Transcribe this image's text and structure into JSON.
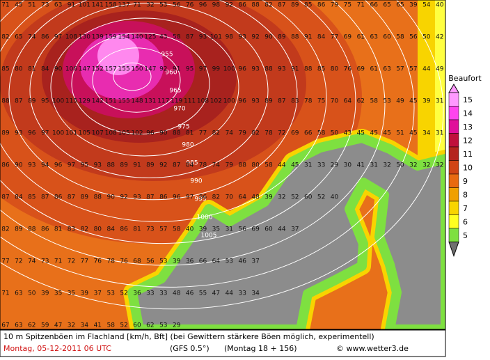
{
  "map": {
    "rows": [
      [
        71,
        45,
        51,
        73,
        63,
        91,
        101,
        141,
        158,
        137,
        71,
        32,
        53,
        56,
        76,
        96,
        98,
        92,
        86,
        88,
        82,
        87,
        89,
        85,
        86,
        79,
        75,
        71,
        66,
        65,
        65,
        39,
        54,
        40
      ],
      [
        82,
        65,
        74,
        86,
        97,
        108,
        130,
        139,
        159,
        154,
        140,
        125,
        43,
        58,
        87,
        93,
        101,
        98,
        93,
        92,
        90,
        89,
        88,
        91,
        84,
        77,
        69,
        61,
        63,
        60,
        58,
        56,
        50,
        42
      ],
      [
        85,
        80,
        81,
        84,
        90,
        106,
        147,
        152,
        157,
        155,
        150,
        147,
        92,
        91,
        95,
        97,
        99,
        100,
        96,
        93,
        88,
        93,
        91,
        88,
        85,
        80,
        76,
        69,
        61,
        63,
        57,
        57,
        44,
        49
      ],
      [
        88,
        87,
        89,
        95,
        100,
        115,
        129,
        142,
        151,
        155,
        148,
        131,
        117,
        119,
        111,
        108,
        102,
        100,
        96,
        93,
        89,
        87,
        83,
        78,
        75,
        70,
        64,
        62,
        58,
        53,
        49,
        45,
        39,
        31
      ],
      [
        89,
        93,
        96,
        97,
        100,
        101,
        105,
        107,
        108,
        105,
        102,
        96,
        90,
        88,
        81,
        77,
        82,
        74,
        79,
        82,
        78,
        72,
        69,
        66,
        58,
        50,
        43,
        45,
        45,
        45,
        51,
        45,
        34,
        31
      ],
      [
        86,
        90,
        93,
        94,
        96,
        97,
        95,
        93,
        88,
        89,
        91,
        89,
        92,
        87,
        84,
        78,
        74,
        79,
        88,
        80,
        58,
        44,
        45,
        31,
        33,
        29,
        30,
        41,
        31,
        32,
        50,
        32,
        32,
        32
      ],
      [
        87,
        84,
        85,
        87,
        86,
        87,
        89,
        88,
        90,
        92,
        93,
        87,
        86,
        96,
        97,
        86,
        82,
        70,
        64,
        48,
        39,
        32,
        52,
        60,
        52,
        40
      ],
      [
        82,
        89,
        88,
        86,
        81,
        83,
        82,
        80,
        84,
        86,
        81,
        73,
        57,
        58,
        40,
        39,
        35,
        31,
        56,
        69,
        60,
        44,
        37
      ],
      [
        77,
        72,
        74,
        73,
        71,
        72,
        77,
        76,
        78,
        76,
        68,
        56,
        53,
        39,
        36,
        66,
        64,
        53,
        46,
        37
      ],
      [
        71,
        63,
        50,
        39,
        35,
        35,
        39,
        37,
        53,
        52,
        36,
        33,
        33,
        48,
        46,
        55,
        47,
        44,
        33,
        34
      ],
      [
        67,
        63,
        62,
        59,
        47,
        32,
        34,
        41,
        58,
        52,
        60,
        62,
        53,
        29
      ]
    ],
    "isobars": [
      955,
      960,
      965,
      970,
      975,
      980,
      985,
      990,
      995,
      1000,
      1005
    ],
    "legend": {
      "title": "Beaufort",
      "levels": [
        {
          "value": 15,
          "color": "#ff99ff"
        },
        {
          "value": 14,
          "color": "#ff44ee"
        },
        {
          "value": 13,
          "color": "#e0109a"
        },
        {
          "value": 12,
          "color": "#c0103c"
        },
        {
          "value": 11,
          "color": "#b4241e"
        },
        {
          "value": 10,
          "color": "#d04414"
        },
        {
          "value": 9,
          "color": "#e86a10"
        },
        {
          "value": 8,
          "color": "#f0a000"
        },
        {
          "value": 7,
          "color": "#f8d400"
        },
        {
          "value": 6,
          "color": "#ffff20"
        },
        {
          "value": 5,
          "color": "#7ee040"
        }
      ]
    },
    "caption": {
      "line1": "10 m Spitzenböen im Flachland [km/h, Bft] (bei Gewittern stärkere Böen möglich, experimentell)",
      "date": "Montag, 05-12-2011   06 UTC",
      "model": "(GFS 0.5°)",
      "run": "(Montag 18 + 156)",
      "source": "© www.wetter3.de"
    }
  }
}
